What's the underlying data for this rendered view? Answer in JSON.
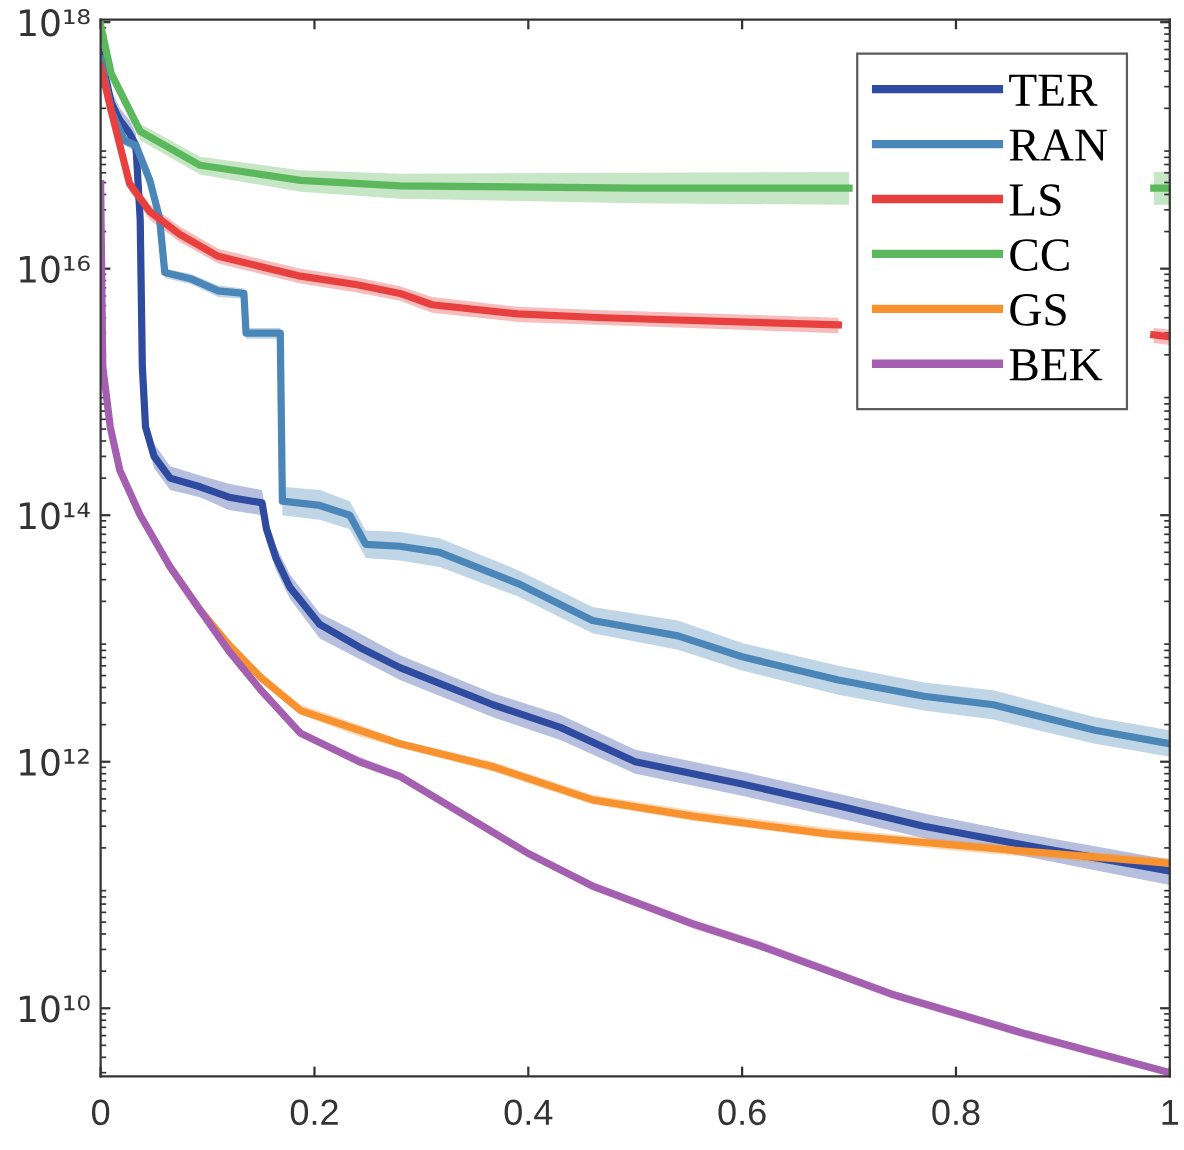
{
  "chart_data": {
    "type": "line",
    "log": "y",
    "legend": "top right",
    "grid": false,
    "marker": "none",
    "line_style": "solid",
    "xlim": [
      0,
      1
    ],
    "xticks": [
      0,
      0.2,
      0.4,
      0.6,
      0.8,
      1
    ],
    "ylim": [
      2800000000.0,
      1.05e+18
    ],
    "yticks": [
      {
        "value": 10000000000.0,
        "label": "10¹⁰"
      },
      {
        "value": 1000000000000.0,
        "label": "10¹²"
      },
      {
        "value": 100000000000000.0,
        "label": "10¹⁴"
      },
      {
        "value": 1e+16,
        "label": "10¹⁶"
      },
      {
        "value": 1e+18,
        "label": "10¹⁸"
      }
    ],
    "series": [
      {
        "name": "TER",
        "color": "#2f4ba0",
        "x": [
          0,
          0.01,
          0.018,
          0.027,
          0.033,
          0.037,
          0.039,
          0.042,
          0.05,
          0.065,
          0.093,
          0.12,
          0.151,
          0.155,
          0.164,
          0.177,
          0.205,
          0.242,
          0.28,
          0.367,
          0.43,
          0.5,
          0.6,
          0.69,
          0.77,
          0.865,
          1
        ],
        "values": [
          5.4e+17,
          2.2e+17,
          1.6e+17,
          1.26e+17,
          1e+17,
          2.5e+16,
          1600000000000000.0,
          520000000000000.0,
          300000000000000.0,
          200000000000000.0,
          170000000000000.0,
          140000000000000.0,
          126000000000000.0,
          78000000000000.0,
          45000000000000.0,
          26000000000000.0,
          13000000000000.0,
          8500000000000.0,
          5800000000000.0,
          2900000000000.0,
          1900000000000.0,
          1000000000000.0,
          660000000000.0,
          440000000000.0,
          300000000000.0,
          210000000000.0,
          130000000000.0
        ],
        "lower": [
          4.3e+17,
          1.8e+17,
          1.3e+17,
          1e+17,
          8e+16,
          2e+16,
          1300000000000000.0,
          420000000000000.0,
          240000000000000.0,
          160000000000000.0,
          140000000000000.0,
          110000000000000.0,
          100000000000000.0,
          62000000000000.0,
          36000000000000.0,
          21000000000000.0,
          10000000000000.0,
          6800000000000.0,
          4600000000000.0,
          2300000000000.0,
          1500000000000.0,
          800000000000.0,
          530000000000.0,
          350000000000.0,
          240000000000.0,
          170000000000.0,
          100000000000.0
        ],
        "upper": [
          6.8e+17,
          2.8e+17,
          2e+17,
          1.6e+17,
          1.25e+17,
          3.1e+16,
          2000000000000000.0,
          650000000000000.0,
          380000000000000.0,
          250000000000000.0,
          210000000000000.0,
          180000000000000.0,
          160000000000000.0,
          98000000000000.0,
          56000000000000.0,
          33000000000000.0,
          16000000000000.0,
          11000000000000.0,
          7300000000000.0,
          3600000000000.0,
          2400000000000.0,
          1250000000000.0,
          830000000000.0,
          550000000000.0,
          380000000000.0,
          260000000000.0,
          160000000000.0
        ]
      },
      {
        "name": "RAN",
        "color": "#4a86b8",
        "x": [
          0,
          0.01,
          0.022,
          0.033,
          0.046,
          0.055,
          0.06,
          0.084,
          0.11,
          0.134,
          0.136,
          0.168,
          0.17,
          0.205,
          0.233,
          0.248,
          0.28,
          0.317,
          0.39,
          0.46,
          0.54,
          0.6,
          0.69,
          0.77,
          0.835,
          0.93,
          1
        ],
        "values": [
          5e+17,
          1.9e+17,
          1.1e+17,
          1e+17,
          5.2e+16,
          2.6e+16,
          9300000000000000.0,
          8300000000000000.0,
          6600000000000000.0,
          6300000000000000.0,
          3000000000000000.0,
          3000000000000000.0,
          130000000000000.0,
          120000000000000.0,
          100000000000000.0,
          58000000000000.0,
          56000000000000.0,
          50000000000000.0,
          28000000000000.0,
          14000000000000.0,
          10500000000000.0,
          7100000000000.0,
          4600000000000.0,
          3400000000000.0,
          2900000000000.0,
          1800000000000.0,
          1400000000000.0
        ],
        "lower": [
          4.5e+17,
          1.7e+17,
          1e+17,
          9e+16,
          4.7e+16,
          2.3e+16,
          8400000000000000.0,
          7500000000000000.0,
          5900000000000000.0,
          5700000000000000.0,
          2700000000000000.0,
          2700000000000000.0,
          100000000000000.0,
          92000000000000.0,
          77000000000000.0,
          45000000000000.0,
          43000000000000.0,
          38000000000000.0,
          22000000000000.0,
          11000000000000.0,
          8100000000000.0,
          5500000000000.0,
          3500000000000.0,
          2600000000000.0,
          2200000000000.0,
          1400000000000.0,
          1100000000000.0
        ],
        "upper": [
          5.5e+17,
          2.1e+17,
          1.2e+17,
          1.1e+17,
          5.7e+16,
          2.9e+16,
          1e+16,
          9100000000000000.0,
          7300000000000000.0,
          6900000000000000.0,
          3300000000000000.0,
          3300000000000000.0,
          170000000000000.0,
          160000000000000.0,
          130000000000000.0,
          75000000000000.0,
          73000000000000.0,
          65000000000000.0,
          36000000000000.0,
          18000000000000.0,
          14000000000000.0,
          9200000000000.0,
          6000000000000.0,
          4400000000000.0,
          3800000000000.0,
          2300000000000.0,
          1800000000000.0
        ]
      },
      {
        "name": "LS",
        "color": "#e8403f",
        "x": [
          0,
          0.01,
          0.018,
          0.027,
          0.046,
          0.074,
          0.11,
          0.187,
          0.24,
          0.28,
          0.31,
          0.39,
          0.47,
          0.69,
          0.84,
          0.985,
          1
        ],
        "values": [
          4.4e+17,
          1.9e+17,
          1e+17,
          4.9e+16,
          2.9e+16,
          1.9e+16,
          1.26e+16,
          8700000000000000.0,
          7400000000000000.0,
          6300000000000000.0,
          5100000000000000.0,
          4300000000000000.0,
          4000000000000000.0,
          3500000000000000.0,
          null,
          2900000000000000.0,
          2800000000000000.0
        ],
        "lower": [
          3.8e+17,
          1.65e+17,
          8.7e+16,
          4.3e+16,
          2.5e+16,
          1.65e+16,
          1.1e+16,
          7600000000000000.0,
          6400000000000000.0,
          5500000000000000.0,
          4400000000000000.0,
          3700000000000000.0,
          3500000000000000.0,
          3000000000000000.0,
          null,
          2500000000000000.0,
          2400000000000000.0
        ],
        "upper": [
          5.1e+17,
          2.2e+17,
          1.15e+17,
          5.6e+16,
          3.3e+16,
          2.2e+16,
          1.45e+16,
          1e+16,
          8500000000000000.0,
          7200000000000000.0,
          5900000000000000.0,
          4900000000000000.0,
          4600000000000000.0,
          4000000000000000.0,
          null,
          3300000000000000.0,
          3200000000000000.0
        ]
      },
      {
        "name": "CC",
        "color": "#5cb85c",
        "x": [
          0,
          0.01,
          0.037,
          0.093,
          0.187,
          0.28,
          0.5,
          0.7,
          0.75,
          0.985,
          1
        ],
        "values": [
          9.5e+17,
          3.8e+17,
          1.3e+17,
          6.9e+16,
          5.2e+16,
          4.7e+16,
          4.5e+16,
          4.5e+16,
          null,
          4.5e+16,
          4.5e+16
        ],
        "lower": [
          9e+17,
          3.3e+17,
          1.1e+17,
          5.8e+16,
          4.2e+16,
          3.7e+16,
          3.4e+16,
          3.3e+16,
          null,
          3.3e+16,
          3.3e+16
        ],
        "upper": [
          1e+18,
          4.4e+17,
          1.5e+17,
          8.1e+16,
          6.3e+16,
          5.9e+16,
          6e+16,
          6.1e+16,
          null,
          6.1e+16,
          6.1e+16
        ]
      },
      {
        "name": "GS",
        "color": "#f7922e",
        "x": [
          0.065,
          0.093,
          0.12,
          0.15,
          0.187,
          0.242,
          0.28,
          0.367,
          0.46,
          0.555,
          0.68,
          0.8,
          1
        ],
        "values": [
          38000000000000.0,
          17000000000000.0,
          8900000000000.0,
          4800000000000.0,
          2600000000000.0,
          1800000000000.0,
          1400000000000.0,
          910000000000.0,
          490000000000.0,
          360000000000.0,
          260000000000.0,
          210000000000.0,
          150000000000.0
        ],
        "lower": [
          35000000000000.0,
          15500000000000.0,
          8100000000000.0,
          4400000000000.0,
          2400000000000.0,
          1600000000000.0,
          1300000000000.0,
          830000000000.0,
          450000000000.0,
          330000000000.0,
          240000000000.0,
          190000000000.0,
          135000000000.0
        ],
        "upper": [
          42000000000000.0,
          19000000000000.0,
          9800000000000.0,
          5300000000000.0,
          2900000000000.0,
          2000000000000.0,
          1500000000000.0,
          1000000000000.0,
          540000000000.0,
          400000000000.0,
          290000000000.0,
          230000000000.0,
          165000000000.0
        ]
      },
      {
        "name": "BEK",
        "color": "#a55fb0",
        "x": [
          0,
          0.002,
          0.009,
          0.018,
          0.037,
          0.065,
          0.093,
          0.12,
          0.15,
          0.187,
          0.242,
          0.28,
          0.4,
          0.46,
          0.555,
          0.617,
          0.74,
          0.865,
          1
        ],
        "values": [
          4.9e+16,
          1600000000000000.0,
          520000000000000.0,
          230000000000000.0,
          100000000000000.0,
          38000000000000.0,
          17000000000000.0,
          7900000000000.0,
          3800000000000.0,
          1700000000000.0,
          1000000000000.0,
          760000000000.0,
          180000000000.0,
          98000000000.0,
          48000000000.0,
          32000000000.0,
          13000000000.0,
          6200000000.0,
          3000000000.0
        ],
        "lower": [
          4.5e+16,
          1500000000000000.0,
          480000000000000.0,
          210000000000000.0,
          93000000000000.0,
          35000000000000.0,
          16000000000000.0,
          7300000000000.0,
          3500000000000.0,
          1600000000000.0,
          930000000000.0,
          700000000000.0,
          170000000000.0,
          91000000000.0,
          44000000000.0,
          30000000000.0,
          12000000000.0,
          5700000000.0,
          2800000000.0
        ],
        "upper": [
          5.3e+16,
          1700000000000000.0,
          560000000000000.0,
          250000000000000.0,
          110000000000000.0,
          41000000000000.0,
          18000000000000.0,
          8500000000000.0,
          4100000000000.0,
          1800000000000.0,
          1100000000000.0,
          820000000000.0,
          190000000000.0,
          106000000000.0,
          52000000000.0,
          35000000000.0,
          14000000000.0,
          6700000000.0,
          3200000000.0
        ]
      }
    ]
  }
}
